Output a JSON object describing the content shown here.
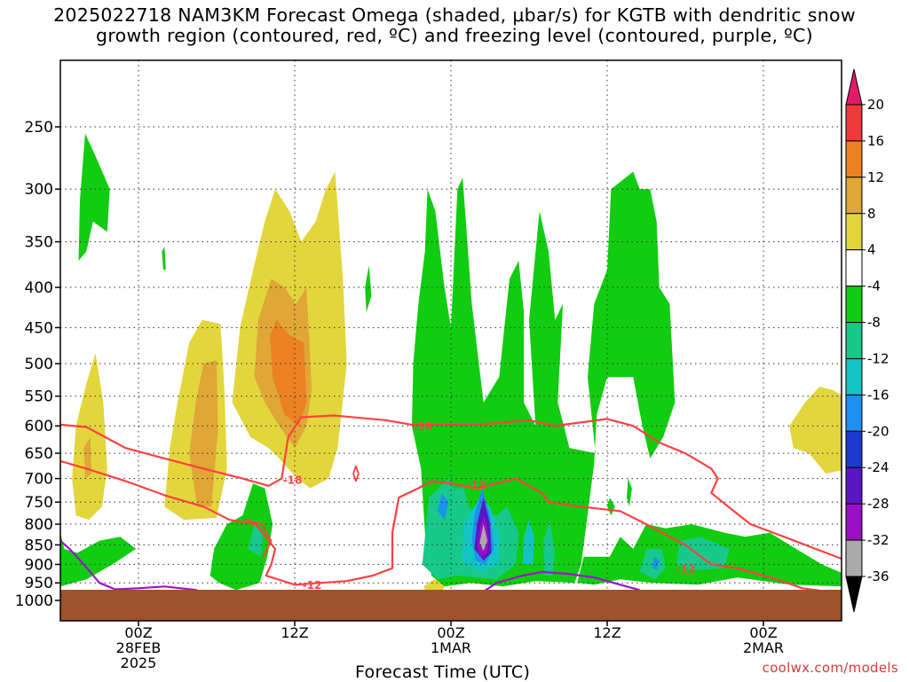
{
  "title": {
    "line1": "2025022718 NAM3KM Forecast Omega (shaded, μbar/s) for KGTB with dendritic snow",
    "line2": "growth region (contoured, red, ºC) and freezing level (contoured, purple, ºC)"
  },
  "credit": "coolwx.com/models",
  "chart_data": {
    "type": "heatmap",
    "title": "2025022718 NAM3KM Forecast Omega (shaded, μbar/s) for KGTB with dendritic snow growth region (contoured, red, ºC) and freezing level (contoured, purple, ºC)",
    "xlabel": "Forecast Time (UTC)",
    "ylabel": "",
    "y_scale": "pressure (log-p, inverted)",
    "yticks": [
      "250",
      "300",
      "350",
      "400",
      "450",
      "500",
      "550",
      "600",
      "650",
      "700",
      "750",
      "800",
      "850",
      "900",
      "950",
      "1000"
    ],
    "ytick_values": [
      250,
      300,
      350,
      400,
      450,
      500,
      550,
      600,
      650,
      700,
      750,
      800,
      850,
      900,
      950,
      1000
    ],
    "xticks": [
      {
        "hour": 6,
        "lines": [
          "00Z",
          "28FEB",
          "2025"
        ]
      },
      {
        "hour": 18,
        "lines": [
          "12Z"
        ]
      },
      {
        "hour": 30,
        "lines": [
          "00Z",
          "1MAR"
        ]
      },
      {
        "hour": 42,
        "lines": [
          "12Z"
        ]
      },
      {
        "hour": 54,
        "lines": [
          "00Z",
          "2MAR"
        ]
      }
    ],
    "xlim_hours": [
      0,
      60
    ],
    "ylim_hpa": [
      1020,
      200
    ],
    "colorbar": {
      "labels": [
        "20",
        "16",
        "12",
        "8",
        "4",
        "-4",
        "-8",
        "-12",
        "-16",
        "-20",
        "-24",
        "-28",
        "-32",
        "-36"
      ],
      "colors": [
        "#e01b6a",
        "#ee3a3a",
        "#ec8123",
        "#e0a636",
        "#e3d63d",
        "#ffffff",
        "#11cc11",
        "#17c98a",
        "#13c4c4",
        "#1e90f0",
        "#1d3ad0",
        "#5b16c4",
        "#9b0fc4",
        "#aaaaaa",
        "#000000"
      ]
    },
    "contour_labels_dendritic": [
      "-18",
      "-18",
      "-12",
      "-12",
      "-12"
    ],
    "colors": {
      "ground": "#a0522d",
      "dendritic_contour": "#ff4040",
      "freezing_contour": "#9d14c8"
    },
    "shaded_regions": [
      {
        "name": "green-left-upper",
        "value": -6,
        "hours": [
          1.5,
          4
        ],
        "p": [
          255,
          370
        ]
      },
      {
        "name": "yellow-left",
        "value": 4,
        "hours": [
          1,
          3.5
        ],
        "p": [
          480,
          780
        ]
      },
      {
        "name": "yellow-left-2",
        "value": 4,
        "hours": [
          8.5,
          12
        ],
        "p": [
          440,
          790
        ]
      },
      {
        "name": "yellow-mid",
        "value": 4,
        "hours": [
          13,
          22
        ],
        "p": [
          270,
          690
        ]
      },
      {
        "name": "orange-mid",
        "value": 10,
        "hours": [
          15,
          18.5
        ],
        "p": [
          430,
          620
        ]
      },
      {
        "name": "yellow-right",
        "value": 4,
        "hours": [
          56.5,
          60
        ],
        "p": [
          550,
          680
        ]
      },
      {
        "name": "green-center",
        "value": -6,
        "hours": [
          28,
          38
        ],
        "p": [
          290,
          955
        ]
      },
      {
        "name": "green-right",
        "value": -6,
        "hours": [
          39,
          47.5
        ],
        "p": [
          285,
          640
        ]
      },
      {
        "name": "purple-core",
        "value": -30,
        "hours": [
          32,
          33.8
        ],
        "p": [
          740,
          885
        ]
      }
    ]
  }
}
